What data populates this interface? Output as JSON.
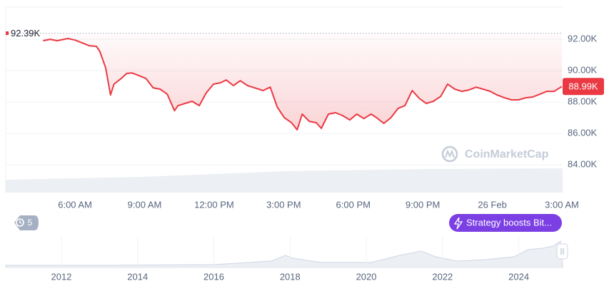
{
  "chart_data": {
    "type": "line",
    "color": "#ea3943",
    "x": [
      4.62,
      4.93,
      5.23,
      5.69,
      6.0,
      6.31,
      6.61,
      6.92,
      7.07,
      7.32,
      7.53,
      7.68,
      7.99,
      8.23,
      8.45,
      8.76,
      9.06,
      9.37,
      9.67,
      9.98,
      10.29,
      10.44,
      10.74,
      11.05,
      11.36,
      11.66,
      11.97,
      12.28,
      12.52,
      12.83,
      13.13,
      13.44,
      13.74,
      14.11,
      14.42,
      14.72,
      15.03,
      15.34,
      15.58,
      15.8,
      16.1,
      16.41,
      16.62,
      16.93,
      17.23,
      17.54,
      17.85,
      18.15,
      18.46,
      18.77,
      19.01,
      19.32,
      19.62,
      19.93,
      20.23,
      20.54,
      20.85,
      21.15,
      21.46,
      21.77,
      22.07,
      22.38,
      22.68,
      22.99,
      23.3,
      23.6,
      23.91,
      24.21,
      24.52,
      24.83,
      25.13,
      25.44,
      25.74,
      26.05,
      26.35,
      26.66,
      27.0
    ],
    "values": [
      91910,
      92000,
      91910,
      92050,
      91950,
      91770,
      91590,
      91550,
      91230,
      90180,
      88450,
      89140,
      89500,
      89820,
      89860,
      89680,
      89500,
      88910,
      88820,
      88500,
      87450,
      87770,
      87910,
      88050,
      87770,
      88590,
      89140,
      89230,
      89410,
      89050,
      89360,
      89050,
      88910,
      88730,
      88950,
      87680,
      87000,
      86680,
      86230,
      87230,
      86770,
      86680,
      86320,
      87230,
      87320,
      87140,
      86860,
      87230,
      86950,
      87230,
      87000,
      86640,
      87000,
      87590,
      87770,
      88730,
      88230,
      87910,
      88050,
      88360,
      89140,
      88820,
      88680,
      88770,
      88950,
      88820,
      88680,
      88450,
      88270,
      88140,
      88140,
      88270,
      88320,
      88500,
      88680,
      88680,
      88990
    ],
    "xlim": [
      3.01,
      27.03
    ],
    "xticks": [
      {
        "value": 6,
        "label": "6:00 AM"
      },
      {
        "value": 9,
        "label": "9:00 AM"
      },
      {
        "value": 12,
        "label": "12:00 PM"
      },
      {
        "value": 15,
        "label": "3:00 PM"
      },
      {
        "value": 18,
        "label": "6:00 PM"
      },
      {
        "value": 21,
        "label": "9:00 PM"
      },
      {
        "value": 24,
        "label": "26 Feb"
      },
      {
        "value": 27,
        "label": "3:00 AM"
      }
    ],
    "ylim": [
      82230,
      94050
    ],
    "yticks": [
      {
        "value": 84000,
        "label": "84.00K"
      },
      {
        "value": 86000,
        "label": "86.00K"
      },
      {
        "value": 88000,
        "label": "88.00K"
      },
      {
        "value": 90000,
        "label": "90.00K"
      },
      {
        "value": 92000,
        "label": "92.00K"
      }
    ],
    "grid": true,
    "high_marker": {
      "value": 92390,
      "label": "92.39K"
    },
    "price_tag": {
      "value": 88990,
      "label": "88.99K"
    },
    "watermark": "CoinMarketCap"
  },
  "history_badge": 5,
  "news": "Strategy boosts Bit...",
  "navigator": {
    "xlim": [
      2010.54,
      2025.15
    ],
    "xticks": [
      2012,
      2014,
      2016,
      2018,
      2020,
      2022,
      2024
    ]
  }
}
